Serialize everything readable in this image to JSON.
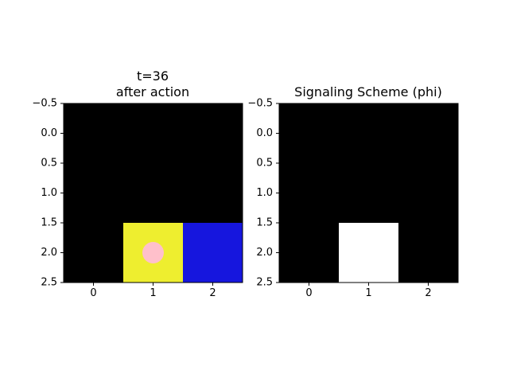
{
  "chart_data": [
    {
      "type": "heatmap",
      "title_line1": "t=36",
      "title_line2": "after action",
      "xlabel": "",
      "ylabel": "",
      "x_ticks": [
        0,
        1,
        2
      ],
      "y_ticks": [
        -0.5,
        0.0,
        0.5,
        1.0,
        1.5,
        2.0,
        2.5
      ],
      "x_tick_labels": [
        "0",
        "1",
        "2"
      ],
      "y_tick_labels": [
        "−0.5",
        "0.0",
        "0.5",
        "1.0",
        "1.5",
        "2.0",
        "2.5"
      ],
      "xlim": [
        -0.5,
        2.5
      ],
      "ylim": [
        2.5,
        -0.5
      ],
      "rows": 3,
      "cols": 3,
      "cells": [
        [
          "#000000",
          "#000000",
          "#000000"
        ],
        [
          "#000000",
          "#000000",
          "#000000"
        ],
        [
          "#000000",
          "#eeee2f",
          "#1616de"
        ]
      ],
      "cell_rows_visible": [
        -0.5,
        2.5
      ],
      "markers": [
        {
          "shape": "circle",
          "x": 1,
          "y": 2,
          "color": "#ffc0cb"
        }
      ]
    },
    {
      "type": "heatmap",
      "title_line1": "Signaling Scheme (phi)",
      "title_line2": "",
      "xlabel": "",
      "ylabel": "",
      "x_ticks": [
        0,
        1,
        2
      ],
      "y_ticks": [
        -0.5,
        0.0,
        0.5,
        1.0,
        1.5,
        2.0,
        2.5
      ],
      "x_tick_labels": [
        "0",
        "1",
        "2"
      ],
      "y_tick_labels": [
        "−0.5",
        "0.0",
        "0.5",
        "1.0",
        "1.5",
        "2.0",
        "2.5"
      ],
      "xlim": [
        -0.5,
        2.5
      ],
      "ylim": [
        2.5,
        -0.5
      ],
      "rows": 3,
      "cols": 3,
      "cells": [
        [
          "#000000",
          "#000000",
          "#000000"
        ],
        [
          "#000000",
          "#000000",
          "#000000"
        ],
        [
          "#000000",
          "#ffffff",
          "#000000"
        ]
      ],
      "markers": []
    }
  ]
}
